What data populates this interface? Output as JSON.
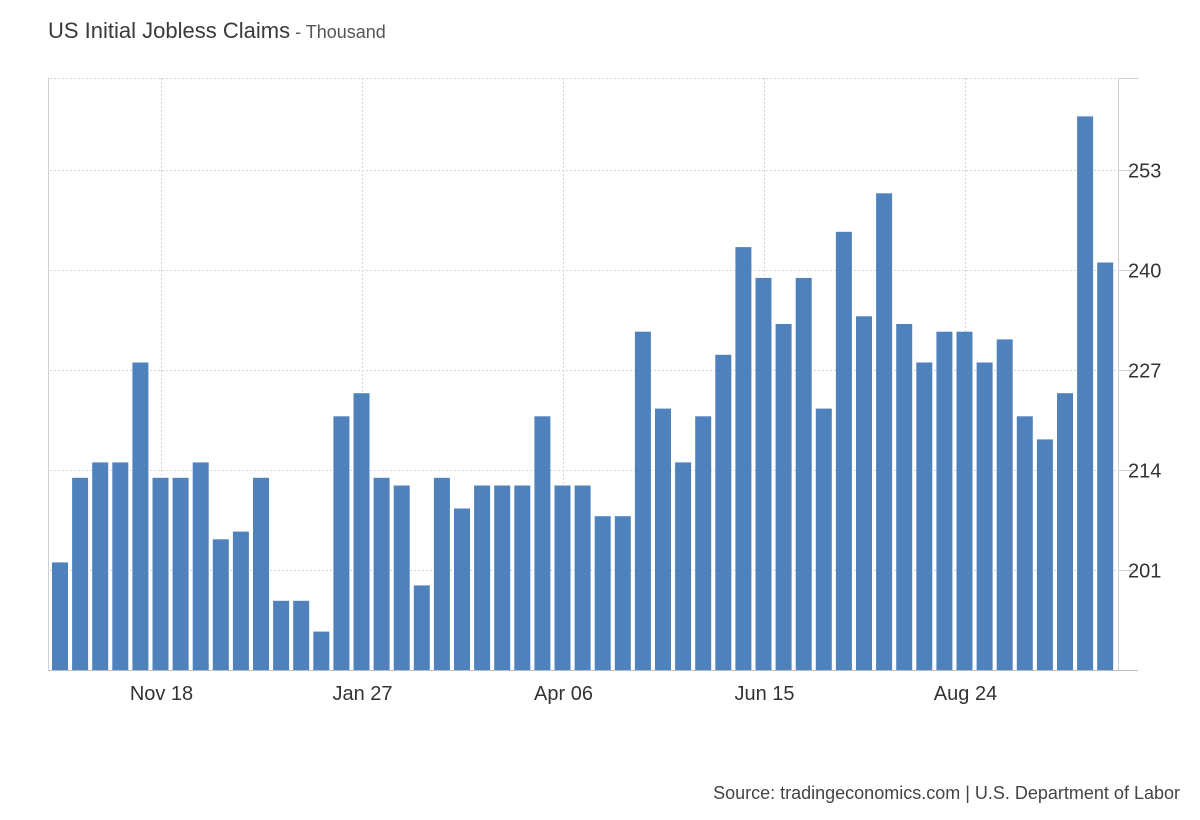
{
  "title": "US Initial Jobless Claims",
  "title_separator": " - ",
  "unit": "Thousand",
  "source": "Source: tradingeconomics.com | U.S. Department of Labor",
  "chart_data": {
    "type": "bar",
    "title": "US Initial Jobless Claims",
    "unit": "Thousand",
    "xlabel": "",
    "ylabel": "",
    "x_tick_labels": [
      "Nov 18",
      "Jan 27",
      "Apr 06",
      "Jun 15",
      "Aug 24"
    ],
    "x_tick_bar_index": [
      5,
      15,
      25,
      35,
      45
    ],
    "y_ticks": [
      201,
      214,
      227,
      240,
      253
    ],
    "ylim": [
      188,
      265
    ],
    "grid": true,
    "legend": "none",
    "bar_color": "#4f81bd",
    "values": [
      202,
      213,
      215,
      215,
      228,
      213,
      213,
      215,
      205,
      206,
      213,
      197,
      197,
      193,
      221,
      224,
      213,
      212,
      199,
      213,
      209,
      212,
      212,
      212,
      221,
      212,
      212,
      208,
      208,
      232,
      222,
      215,
      221,
      229,
      243,
      239,
      233,
      239,
      222,
      245,
      234,
      250,
      233,
      228,
      232,
      232,
      228,
      231,
      221,
      218,
      224,
      260,
      241
    ]
  }
}
